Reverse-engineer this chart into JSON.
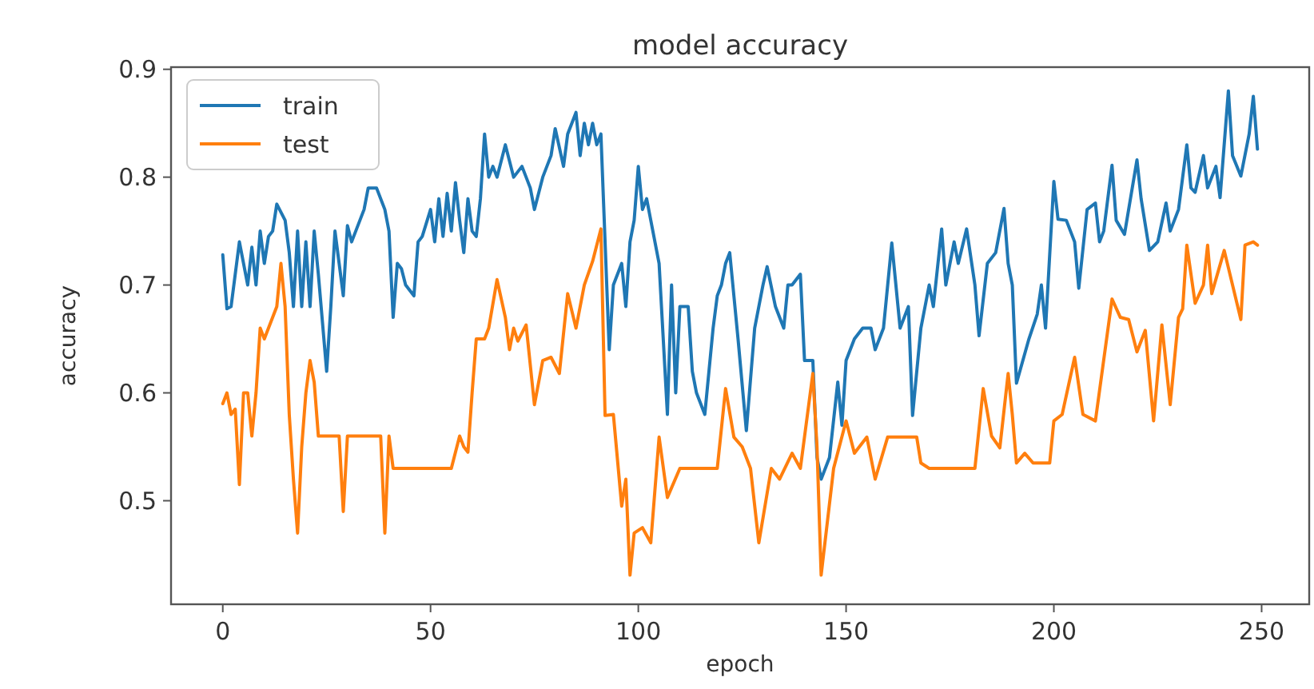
{
  "chart_data": {
    "type": "line",
    "title": "model accuracy",
    "xlabel": "epoch",
    "ylabel": "accuracy",
    "xlim": [
      -12.45,
      261.45
    ],
    "ylim": [
      0.404,
      0.902
    ],
    "xticks": [
      0,
      50,
      100,
      150,
      200,
      250
    ],
    "yticks": [
      0.5,
      0.6,
      0.7,
      0.8,
      0.9
    ],
    "legend": "top left",
    "grid": false,
    "series": [
      {
        "name": "train",
        "color": "#1f77b4",
        "x": [
          0,
          1,
          2,
          4,
          6,
          7,
          8,
          9,
          10,
          11,
          12,
          13,
          15,
          16,
          17,
          18,
          19,
          20,
          21,
          22,
          23,
          25,
          26,
          27,
          28,
          29,
          30,
          31,
          32,
          34,
          35,
          37,
          39,
          40,
          41,
          42,
          43,
          44,
          46,
          47,
          48,
          50,
          51,
          52,
          53,
          54,
          55,
          56,
          57,
          58,
          59,
          60,
          61,
          62,
          63,
          64,
          65,
          66,
          68,
          70,
          72,
          74,
          75,
          77,
          79,
          80,
          82,
          83,
          85,
          86,
          87,
          88,
          89,
          90,
          91,
          93,
          94,
          95,
          96,
          97,
          98,
          99,
          100,
          101,
          102,
          103,
          105,
          107,
          108,
          109,
          110,
          112,
          113,
          114,
          116,
          118,
          119,
          120,
          121,
          122,
          123,
          124,
          126,
          128,
          130,
          131,
          133,
          135,
          136,
          137,
          139,
          140,
          142,
          143,
          144,
          146,
          148,
          149,
          150,
          152,
          154,
          156,
          157,
          159,
          161,
          163,
          165,
          166,
          168,
          170,
          171,
          173,
          174,
          176,
          177,
          179,
          181,
          182,
          184,
          186,
          188,
          189,
          190,
          191,
          194,
          196,
          197,
          198,
          200,
          201,
          203,
          205,
          206,
          208,
          210,
          211,
          212,
          214,
          215,
          217,
          218,
          220,
          221,
          223,
          225,
          227,
          228,
          230,
          232,
          233,
          234,
          236,
          237,
          239,
          240,
          242,
          243,
          245,
          247,
          248,
          249
        ],
        "values": [
          0.728,
          0.678,
          0.68,
          0.74,
          0.7,
          0.735,
          0.7,
          0.75,
          0.72,
          0.745,
          0.75,
          0.775,
          0.76,
          0.73,
          0.68,
          0.75,
          0.68,
          0.74,
          0.68,
          0.75,
          0.71,
          0.62,
          0.68,
          0.75,
          0.72,
          0.69,
          0.755,
          0.74,
          0.75,
          0.77,
          0.79,
          0.79,
          0.77,
          0.75,
          0.67,
          0.72,
          0.715,
          0.7,
          0.69,
          0.74,
          0.745,
          0.77,
          0.74,
          0.78,
          0.745,
          0.785,
          0.75,
          0.795,
          0.76,
          0.73,
          0.78,
          0.75,
          0.745,
          0.78,
          0.84,
          0.8,
          0.81,
          0.8,
          0.83,
          0.8,
          0.81,
          0.79,
          0.77,
          0.8,
          0.82,
          0.845,
          0.81,
          0.84,
          0.86,
          0.82,
          0.85,
          0.83,
          0.85,
          0.83,
          0.84,
          0.64,
          0.7,
          0.71,
          0.72,
          0.68,
          0.74,
          0.76,
          0.81,
          0.77,
          0.78,
          0.76,
          0.72,
          0.58,
          0.7,
          0.6,
          0.68,
          0.68,
          0.62,
          0.6,
          0.58,
          0.66,
          0.69,
          0.7,
          0.72,
          0.73,
          0.69,
          0.65,
          0.565,
          0.66,
          0.7,
          0.717,
          0.68,
          0.66,
          0.7,
          0.7,
          0.71,
          0.63,
          0.63,
          0.54,
          0.52,
          0.54,
          0.61,
          0.57,
          0.63,
          0.65,
          0.66,
          0.66,
          0.64,
          0.66,
          0.739,
          0.66,
          0.68,
          0.579,
          0.66,
          0.7,
          0.68,
          0.752,
          0.7,
          0.74,
          0.72,
          0.752,
          0.7,
          0.653,
          0.72,
          0.73,
          0.771,
          0.72,
          0.7,
          0.609,
          0.65,
          0.673,
          0.7,
          0.66,
          0.796,
          0.761,
          0.76,
          0.74,
          0.697,
          0.77,
          0.776,
          0.74,
          0.75,
          0.811,
          0.76,
          0.747,
          0.77,
          0.816,
          0.78,
          0.732,
          0.74,
          0.776,
          0.75,
          0.77,
          0.83,
          0.79,
          0.786,
          0.82,
          0.79,
          0.81,
          0.781,
          0.88,
          0.82,
          0.801,
          0.84,
          0.875,
          0.826
        ]
      },
      {
        "name": "test",
        "color": "#ff7f0e",
        "x": [
          0,
          1,
          2,
          3,
          4,
          5,
          6,
          7,
          8,
          9,
          10,
          11,
          12,
          13,
          14,
          15,
          16,
          17,
          18,
          19,
          20,
          21,
          22,
          23,
          28,
          29,
          30,
          38,
          39,
          40,
          41,
          55,
          57,
          58,
          59,
          60,
          61,
          63,
          64,
          66,
          68,
          69,
          70,
          71,
          73,
          75,
          77,
          79,
          81,
          83,
          85,
          87,
          89,
          91,
          92,
          94,
          96,
          97,
          98,
          99,
          101,
          103,
          105,
          107,
          110,
          119,
          121,
          123,
          125,
          127,
          129,
          132,
          134,
          137,
          139,
          142,
          143,
          144,
          147,
          150,
          152,
          155,
          157,
          160,
          167,
          168,
          170,
          175,
          181,
          183,
          185,
          187,
          189,
          190,
          191,
          193,
          195,
          199,
          200,
          202,
          205,
          207,
          210,
          214,
          216,
          218,
          220,
          222,
          224,
          226,
          228,
          230,
          231,
          232,
          234,
          236,
          237,
          238,
          241,
          245,
          246,
          248,
          249
        ],
        "values": [
          0.59,
          0.6,
          0.58,
          0.585,
          0.515,
          0.6,
          0.6,
          0.56,
          0.6,
          0.66,
          0.65,
          0.66,
          0.67,
          0.68,
          0.72,
          0.68,
          0.58,
          0.52,
          0.47,
          0.55,
          0.6,
          0.63,
          0.61,
          0.56,
          0.56,
          0.49,
          0.56,
          0.56,
          0.47,
          0.56,
          0.53,
          0.53,
          0.56,
          0.55,
          0.545,
          0.6,
          0.65,
          0.65,
          0.66,
          0.705,
          0.67,
          0.64,
          0.66,
          0.648,
          0.663,
          0.589,
          0.63,
          0.633,
          0.618,
          0.692,
          0.66,
          0.7,
          0.722,
          0.752,
          0.579,
          0.58,
          0.495,
          0.52,
          0.431,
          0.47,
          0.475,
          0.461,
          0.559,
          0.503,
          0.53,
          0.53,
          0.604,
          0.559,
          0.55,
          0.53,
          0.461,
          0.53,
          0.52,
          0.544,
          0.53,
          0.618,
          0.55,
          0.431,
          0.53,
          0.574,
          0.544,
          0.559,
          0.52,
          0.559,
          0.559,
          0.535,
          0.53,
          0.53,
          0.53,
          0.604,
          0.56,
          0.549,
          0.618,
          0.58,
          0.535,
          0.544,
          0.535,
          0.535,
          0.574,
          0.58,
          0.633,
          0.58,
          0.574,
          0.687,
          0.67,
          0.668,
          0.638,
          0.658,
          0.574,
          0.663,
          0.589,
          0.67,
          0.678,
          0.737,
          0.683,
          0.7,
          0.737,
          0.692,
          0.732,
          0.668,
          0.737,
          0.74,
          0.737
        ]
      }
    ]
  }
}
